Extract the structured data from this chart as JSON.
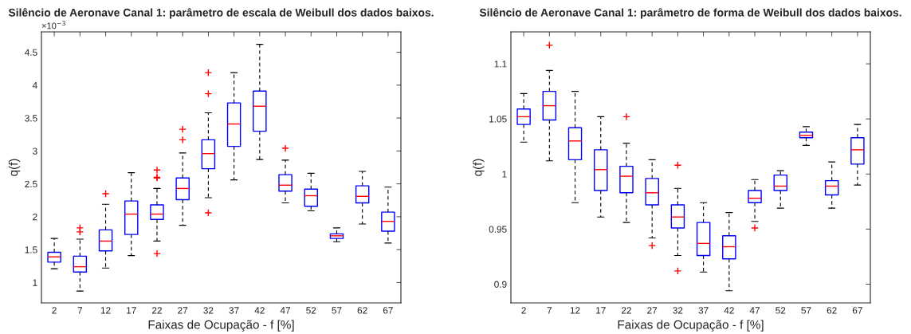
{
  "chart_data": [
    {
      "type": "box",
      "title": "Silêncio de Aeronave Canal 1: parâmetro de escala de Weibull dos dados baixos.",
      "xlabel": "Faixas de Ocupação - f [%]",
      "ylabel": "q(f)",
      "annotations": [
        "×10$^{−3}$"
      ],
      "categories": [
        "2",
        "7",
        "12",
        "17",
        "22",
        "27",
        "32",
        "37",
        "42",
        "47",
        "52",
        "57",
        "62",
        "67"
      ],
      "ylim": [
        0.69,
        4.81
      ],
      "yticks": [
        1,
        1.5,
        2,
        2.5,
        3,
        3.5,
        4,
        4.5
      ],
      "grid": false,
      "legend": false,
      "series": [
        {
          "color": "#0000ff",
          "boxes": [
            {
              "low": 1.21,
              "q1": 1.31,
              "median": 1.39,
              "q3": 1.46,
              "high": 1.67
            },
            {
              "low": 0.87,
              "q1": 1.16,
              "median": 1.24,
              "q3": 1.4,
              "high": 1.66,
              "outliers": [
                1.83,
                1.77
              ]
            },
            {
              "low": 1.22,
              "q1": 1.48,
              "median": 1.63,
              "q3": 1.8,
              "high": 2.19,
              "outliers": [
                2.35
              ]
            },
            {
              "low": 1.41,
              "q1": 1.73,
              "median": 2.04,
              "q3": 2.24,
              "high": 2.67
            },
            {
              "low": 1.63,
              "q1": 1.96,
              "median": 2.04,
              "q3": 2.18,
              "high": 2.43,
              "outliers": [
                2.71,
                2.6,
                2.59,
                1.44
              ]
            },
            {
              "low": 1.87,
              "q1": 2.26,
              "median": 2.43,
              "q3": 2.59,
              "high": 2.97,
              "outliers": [
                3.33,
                3.17
              ]
            },
            {
              "low": 2.29,
              "q1": 2.73,
              "median": 2.96,
              "q3": 3.17,
              "high": 3.58,
              "outliers": [
                4.19,
                3.87,
                2.06
              ]
            },
            {
              "low": 2.56,
              "q1": 3.07,
              "median": 3.41,
              "q3": 3.73,
              "high": 4.19
            },
            {
              "low": 2.87,
              "q1": 3.3,
              "median": 3.68,
              "q3": 3.91,
              "high": 4.62
            },
            {
              "low": 2.21,
              "q1": 2.39,
              "median": 2.48,
              "q3": 2.64,
              "high": 2.86,
              "outliers": [
                3.04
              ]
            },
            {
              "low": 2.09,
              "q1": 2.16,
              "median": 2.32,
              "q3": 2.42,
              "high": 2.66
            },
            {
              "low": 1.62,
              "q1": 1.67,
              "median": 1.71,
              "q3": 1.74,
              "high": 1.83
            },
            {
              "low": 1.89,
              "q1": 2.21,
              "median": 2.31,
              "q3": 2.47,
              "high": 2.69
            },
            {
              "low": 1.6,
              "q1": 1.78,
              "median": 1.93,
              "q3": 2.07,
              "high": 2.45
            }
          ]
        }
      ]
    },
    {
      "type": "box",
      "title": "Silêncio de Aeronave Canal 1: parâmetro de forma de Weibull dos dados baixos.",
      "xlabel": "Faixas de Ocupação - f [%]",
      "ylabel": "q(f)",
      "categories": [
        "2",
        "7",
        "12",
        "17",
        "22",
        "27",
        "32",
        "37",
        "42",
        "47",
        "52",
        "57",
        "62",
        "67"
      ],
      "ylim": [
        0.883,
        1.129
      ],
      "yticks": [
        0.9,
        0.95,
        1,
        1.05,
        1.1
      ],
      "grid": false,
      "legend": false,
      "series": [
        {
          "color": "#0000ff",
          "boxes": [
            {
              "low": 1.029,
              "q1": 1.045,
              "median": 1.052,
              "q3": 1.059,
              "high": 1.073
            },
            {
              "low": 1.012,
              "q1": 1.049,
              "median": 1.062,
              "q3": 1.075,
              "high": 1.094,
              "outliers": [
                1.117
              ]
            },
            {
              "low": 0.974,
              "q1": 1.013,
              "median": 1.03,
              "q3": 1.042,
              "high": 1.075
            },
            {
              "low": 0.961,
              "q1": 0.985,
              "median": 1.004,
              "q3": 1.022,
              "high": 1.052
            },
            {
              "low": 0.956,
              "q1": 0.983,
              "median": 0.998,
              "q3": 1.007,
              "high": 1.028,
              "outliers": [
                1.052
              ]
            },
            {
              "low": 0.942,
              "q1": 0.972,
              "median": 0.983,
              "q3": 0.996,
              "high": 1.013,
              "outliers": [
                0.935
              ]
            },
            {
              "low": 0.926,
              "q1": 0.951,
              "median": 0.961,
              "q3": 0.972,
              "high": 0.987,
              "outliers": [
                1.008,
                0.912
              ]
            },
            {
              "low": 0.911,
              "q1": 0.926,
              "median": 0.937,
              "q3": 0.956,
              "high": 0.974
            },
            {
              "low": 0.894,
              "q1": 0.923,
              "median": 0.934,
              "q3": 0.944,
              "high": 0.965
            },
            {
              "low": 0.957,
              "q1": 0.974,
              "median": 0.978,
              "q3": 0.985,
              "high": 0.995,
              "outliers": [
                0.951
              ]
            },
            {
              "low": 0.969,
              "q1": 0.985,
              "median": 0.989,
              "q3": 0.999,
              "high": 1.003
            },
            {
              "low": 1.026,
              "q1": 1.033,
              "median": 1.035,
              "q3": 1.038,
              "high": 1.043
            },
            {
              "low": 0.969,
              "q1": 0.981,
              "median": 0.989,
              "q3": 0.994,
              "high": 1.011
            },
            {
              "low": 0.99,
              "q1": 1.009,
              "median": 1.022,
              "q3": 1.033,
              "high": 1.045
            }
          ]
        }
      ]
    }
  ]
}
